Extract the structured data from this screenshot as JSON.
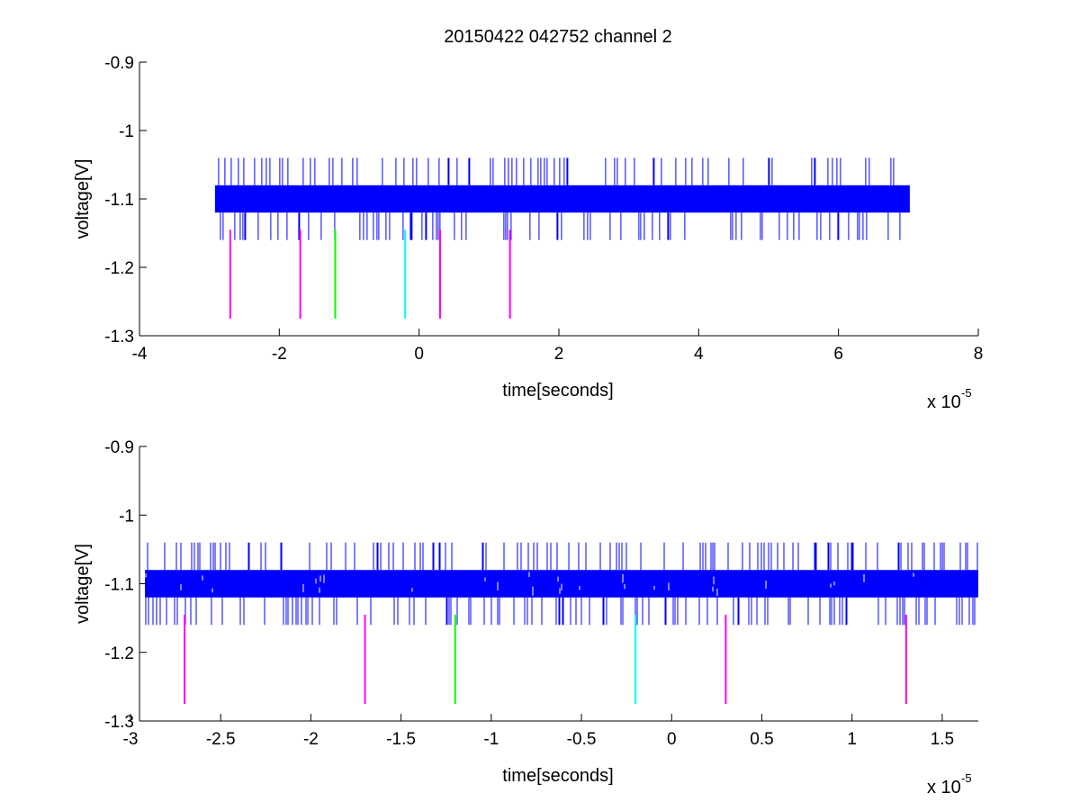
{
  "figure_title": "20150422 042752 channel 2",
  "colors": {
    "signal": "#0000ff",
    "marker_magenta": "#ff00ff",
    "marker_green": "#00ff00",
    "marker_cyan": "#00ffff",
    "axes": "#000000"
  },
  "chart_data": [
    {
      "type": "line",
      "title": "20150422 042752 channel 2",
      "xlabel": "time[seconds]",
      "ylabel": "voltage[V]",
      "x_exponent_label": "x 10",
      "x_exponent": "-5",
      "xlim": [
        -4e-05,
        8e-05
      ],
      "ylim": [
        -1.3,
        -0.9
      ],
      "xticks": [
        -4e-05,
        -2e-05,
        0,
        2e-05,
        4e-05,
        6e-05,
        8e-05
      ],
      "xtick_labels": [
        "-4",
        "-2",
        "0",
        "2",
        "4",
        "6",
        "8"
      ],
      "yticks": [
        -1.3,
        -1.2,
        -1.1,
        -1.0,
        -0.9
      ],
      "ytick_labels": [
        "-1.3",
        "-1.2",
        "-1.1",
        "-1",
        "-0.9"
      ],
      "grid": false,
      "signal": {
        "color": "#0000ff",
        "x_start": -2.92e-05,
        "x_end": 7.02e-05,
        "band": [
          -1.12,
          -1.08
        ],
        "spike_levels": [
          -1.16,
          -1.04
        ]
      },
      "markers": [
        {
          "x": -2.7e-05,
          "y_top": -1.145,
          "y_bottom": -1.275,
          "color": "#ff00ff"
        },
        {
          "x": -1.7e-05,
          "y_top": -1.145,
          "y_bottom": -1.275,
          "color": "#ff00ff"
        },
        {
          "x": -1.2e-05,
          "y_top": -1.145,
          "y_bottom": -1.275,
          "color": "#00ff00"
        },
        {
          "x": -2e-06,
          "y_top": -1.145,
          "y_bottom": -1.275,
          "color": "#00ffff"
        },
        {
          "x": 3e-06,
          "y_top": -1.145,
          "y_bottom": -1.275,
          "color": "#ff00ff"
        },
        {
          "x": 1.3e-05,
          "y_top": -1.145,
          "y_bottom": -1.275,
          "color": "#ff00ff"
        }
      ]
    },
    {
      "type": "line",
      "title": "",
      "xlabel": "time[seconds]",
      "ylabel": "voltage[V]",
      "x_exponent_label": "x 10",
      "x_exponent": "-5",
      "xlim": [
        -2.95e-05,
        1.7e-05
      ],
      "ylim": [
        -1.3,
        -0.9
      ],
      "xticks": [
        -3e-05,
        -2.5e-05,
        -2e-05,
        -1.5e-05,
        -1e-05,
        -5e-06,
        0,
        5e-06,
        1e-05,
        1.5e-05
      ],
      "xtick_labels": [
        "-3",
        "-2.5",
        "-2",
        "-1.5",
        "-1",
        "-0.5",
        "0",
        "0.5",
        "1",
        "1.5"
      ],
      "yticks": [
        -1.3,
        -1.2,
        -1.1,
        -1.0,
        -0.9
      ],
      "ytick_labels": [
        "-1.3",
        "-1.2",
        "-1.1",
        "-1",
        "-0.9"
      ],
      "grid": false,
      "signal": {
        "color": "#0000ff",
        "x_start": -2.92e-05,
        "x_end": 1.7e-05,
        "band": [
          -1.12,
          -1.08
        ],
        "spike_levels": [
          -1.16,
          -1.04
        ]
      },
      "markers": [
        {
          "x": -2.7e-05,
          "y_top": -1.145,
          "y_bottom": -1.275,
          "color": "#ff00ff"
        },
        {
          "x": -1.7e-05,
          "y_top": -1.145,
          "y_bottom": -1.275,
          "color": "#ff00ff"
        },
        {
          "x": -1.2e-05,
          "y_top": -1.145,
          "y_bottom": -1.275,
          "color": "#00ff00"
        },
        {
          "x": -2e-06,
          "y_top": -1.145,
          "y_bottom": -1.275,
          "color": "#00ffff"
        },
        {
          "x": 3e-06,
          "y_top": -1.145,
          "y_bottom": -1.275,
          "color": "#ff00ff"
        },
        {
          "x": 1.3e-05,
          "y_top": -1.145,
          "y_bottom": -1.275,
          "color": "#ff00ff"
        }
      ]
    }
  ]
}
